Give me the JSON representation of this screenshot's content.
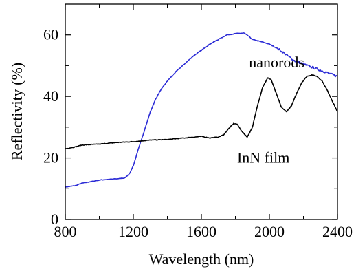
{
  "chart_data": {
    "type": "line",
    "title": "",
    "xlabel": "Wavelength (nm)",
    "ylabel": "Reflectivity (%)",
    "xlim": [
      800,
      2400
    ],
    "ylim": [
      0,
      70
    ],
    "x_ticks": [
      800,
      1200,
      1600,
      2000,
      2400
    ],
    "y_ticks": [
      0,
      20,
      40,
      60
    ],
    "grid": false,
    "legend": "none",
    "series": [
      {
        "name": "nanorods",
        "color": "#2b2bd6",
        "x": [
          800,
          860,
          900,
          1000,
          1100,
          1150,
          1180,
          1200,
          1230,
          1260,
          1300,
          1330,
          1360,
          1400,
          1450,
          1500,
          1550,
          1600,
          1650,
          1700,
          1750,
          1800,
          1850,
          1880,
          1900,
          1950,
          2000,
          2050,
          2100,
          2150,
          2200,
          2250,
          2300,
          2350,
          2400
        ],
        "values": [
          10.5,
          11,
          11.8,
          12.8,
          13.2,
          13.5,
          15,
          17.5,
          23,
          28,
          35,
          39,
          42,
          45,
          48,
          50.5,
          53,
          55,
          57,
          58.5,
          60,
          60.4,
          60.6,
          59.5,
          58.5,
          57.8,
          57,
          55.5,
          53.5,
          51.5,
          50.5,
          49.5,
          48.5,
          47.5,
          46.5
        ]
      },
      {
        "name": "InN film",
        "color": "#000000",
        "x": [
          800,
          860,
          900,
          1000,
          1100,
          1200,
          1300,
          1400,
          1500,
          1600,
          1650,
          1700,
          1730,
          1760,
          1790,
          1810,
          1840,
          1870,
          1900,
          1930,
          1960,
          1990,
          2010,
          2040,
          2070,
          2100,
          2130,
          2160,
          2190,
          2220,
          2250,
          2280,
          2310,
          2340,
          2370,
          2400
        ],
        "values": [
          23,
          23.6,
          24.2,
          24.5,
          25,
          25.3,
          25.8,
          26,
          26.5,
          27,
          26.5,
          26.8,
          27.5,
          29.5,
          31.2,
          31,
          28.5,
          26.8,
          30,
          37,
          43,
          46,
          45.5,
          41,
          36.5,
          35,
          37,
          41,
          44.5,
          46.5,
          47,
          46.5,
          45,
          42,
          38.5,
          35
        ]
      }
    ],
    "annotations": [
      {
        "text": "nanorods",
        "x": 1880,
        "y": 51
      },
      {
        "text": "InN film",
        "x": 1810,
        "y": 20
      }
    ]
  }
}
